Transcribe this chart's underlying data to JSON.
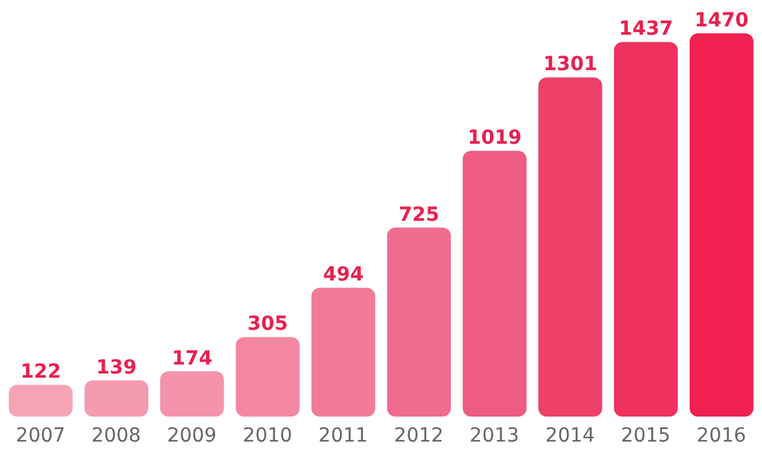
{
  "chart_data": {
    "type": "bar",
    "categories": [
      "2007",
      "2008",
      "2009",
      "2010",
      "2011",
      "2012",
      "2013",
      "2014",
      "2015",
      "2016"
    ],
    "values": [
      122,
      139,
      174,
      305,
      494,
      725,
      1019,
      1301,
      1437,
      1470
    ],
    "colors": [
      "#f6a3b7",
      "#f59bb1",
      "#f493ab",
      "#f387a2",
      "#f27a99",
      "#f06c8e",
      "#ee5c82",
      "#ef4068",
      "#f0305d",
      "#f02050"
    ],
    "data_labels": true
  }
}
